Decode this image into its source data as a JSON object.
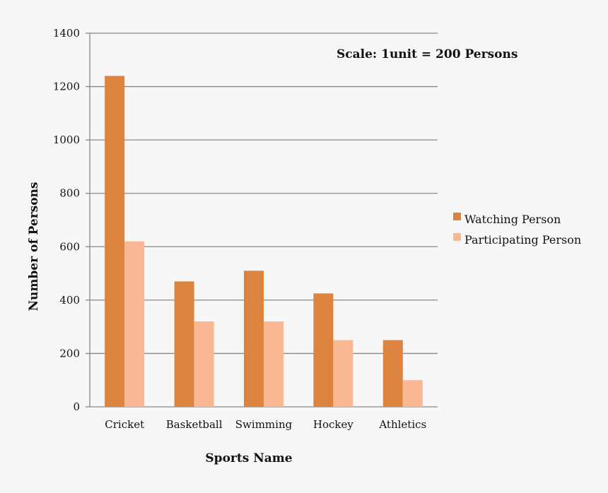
{
  "chart_data": {
    "type": "bar",
    "title": "",
    "annotation": "Scale: 1unit = 200 Persons",
    "xlabel": "Sports Name",
    "ylabel": "Number of Persons",
    "ylim": [
      0,
      1400
    ],
    "yticks": [
      0,
      200,
      400,
      600,
      800,
      1000,
      1200,
      1400
    ],
    "grid": true,
    "legend_position": "right",
    "categories": [
      "Cricket",
      "Basketball",
      "Swimming",
      "Hockey",
      "Athletics"
    ],
    "series": [
      {
        "name": "Watching Person",
        "color": "#dc843f",
        "values": [
          1240,
          470,
          510,
          425,
          250
        ]
      },
      {
        "name": "Participating Person",
        "color": "#f9b793",
        "values": [
          620,
          320,
          320,
          250,
          100
        ]
      }
    ]
  }
}
